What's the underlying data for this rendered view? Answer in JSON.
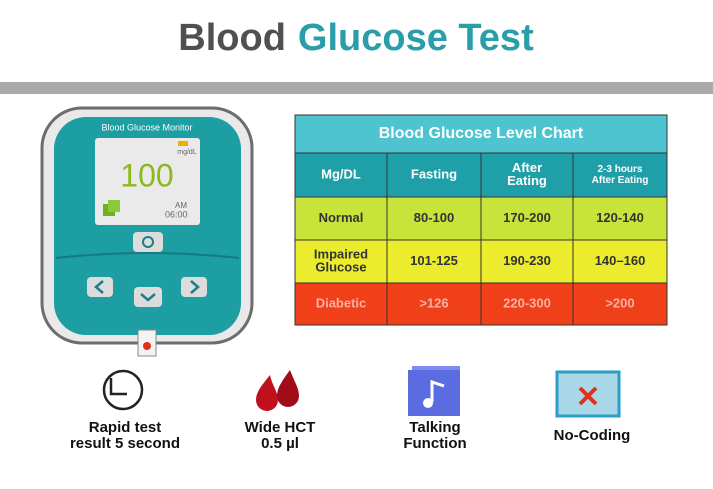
{
  "header": {
    "title_part1": "Blood",
    "title_part2": "Glucose Test"
  },
  "device": {
    "label": "Blood Glucose Monitor",
    "unit": "mg/dL",
    "reading": "100",
    "period": "AM",
    "time": "06:00"
  },
  "table": {
    "title": "Blood Glucose Level  Chart",
    "header": [
      [
        "Mg/DL"
      ],
      [
        "Fasting"
      ],
      [
        "After",
        "Eating"
      ],
      [
        "2-3 hours",
        "After Eating"
      ]
    ],
    "rows": [
      [
        [
          "Normal"
        ],
        [
          "80-100"
        ],
        [
          "170-200"
        ],
        [
          "120-140"
        ]
      ],
      [
        [
          "Impaired",
          "Glucose"
        ],
        [
          "101-125"
        ],
        [
          "190-230"
        ],
        [
          "140–160"
        ]
      ],
      [
        [
          "Diabetic"
        ],
        [
          ">126"
        ],
        [
          "220-300"
        ],
        [
          ">200"
        ]
      ]
    ]
  },
  "features": [
    {
      "lines": [
        "Rapid test",
        "result 5 second"
      ]
    },
    {
      "lines": [
        "Wide HCT",
        "0.5 µl"
      ]
    },
    {
      "lines": [
        "Talking",
        "Function"
      ]
    },
    {
      "lines": [
        "No-Coding"
      ]
    }
  ]
}
